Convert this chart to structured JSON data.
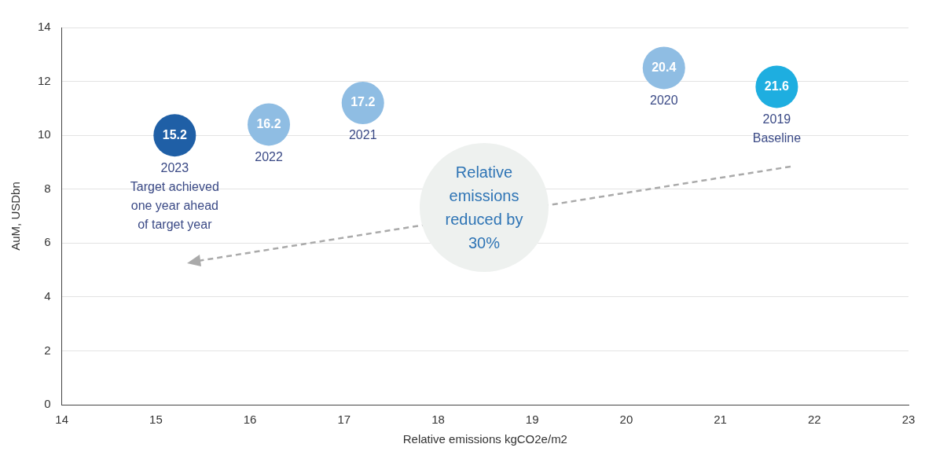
{
  "chart_data": {
    "type": "scatter",
    "xlabel": "Relative emissions kgCO2e/m2",
    "ylabel": "AuM, USDbn",
    "x": [
      15.2,
      16.2,
      17.2,
      20.4,
      21.6
    ],
    "values": [
      10.0,
      10.4,
      11.2,
      12.5,
      11.8
    ],
    "colors": [
      "#1f5fa6",
      "#8fbde3",
      "#8fbde3",
      "#8fbde3",
      "#1eaee0"
    ],
    "marker": "circle",
    "xlim": [
      14,
      23
    ],
    "xticks": [
      14,
      15,
      16,
      17,
      18,
      19,
      20,
      21,
      22,
      23
    ],
    "ylim": [
      0,
      14
    ],
    "yticks": [
      0,
      2,
      4,
      6,
      8,
      10,
      12,
      14
    ],
    "grid": "y",
    "legend": false,
    "annotations": [
      {
        "text": "15.2",
        "x": 15.2,
        "y": 10.0
      },
      {
        "text": "16.2",
        "x": 16.2,
        "y": 10.4
      },
      {
        "text": "17.2",
        "x": 17.2,
        "y": 11.2
      },
      {
        "text": "20.4",
        "x": 20.4,
        "y": 12.5
      },
      {
        "text": "21.6",
        "x": 21.6,
        "y": 11.8
      },
      {
        "text": "2023\nTarget achieved\none year ahead\nof target year",
        "x": 15.2,
        "y": 10.0
      },
      {
        "text": "2022",
        "x": 16.2,
        "y": 10.4
      },
      {
        "text": "2021",
        "x": 17.2,
        "y": 11.2
      },
      {
        "text": "2020",
        "x": 20.4,
        "y": 12.5
      },
      {
        "text": "2019\nBaseline",
        "x": 21.6,
        "y": 11.8
      },
      "Relative emissions reduced by 30%"
    ]
  }
}
